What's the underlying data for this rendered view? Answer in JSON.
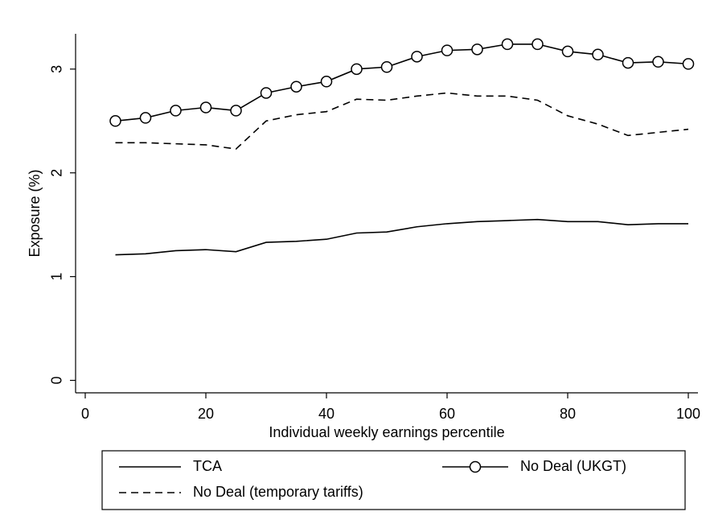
{
  "chart_data": {
    "type": "line",
    "x_label": "Individual weekly earnings percentile",
    "y_label": "Exposure (%)",
    "x": [
      5,
      10,
      15,
      20,
      25,
      30,
      35,
      40,
      45,
      50,
      55,
      60,
      65,
      70,
      75,
      80,
      85,
      90,
      95,
      100
    ],
    "series": [
      {
        "name": "TCA",
        "color": "#000000",
        "dash": "solid",
        "marker": "none",
        "values": [
          1.21,
          1.22,
          1.25,
          1.26,
          1.24,
          1.33,
          1.34,
          1.36,
          1.42,
          1.43,
          1.48,
          1.51,
          1.53,
          1.54,
          1.55,
          1.53,
          1.53,
          1.5,
          1.51,
          1.51
        ]
      },
      {
        "name": "No Deal (UKGT)",
        "color": "#000000",
        "dash": "solid",
        "marker": "circle",
        "values": [
          2.5,
          2.53,
          2.6,
          2.63,
          2.6,
          2.77,
          2.83,
          2.88,
          3.0,
          3.02,
          3.12,
          3.18,
          3.19,
          3.24,
          3.24,
          3.17,
          3.14,
          3.06,
          3.07,
          3.05
        ]
      },
      {
        "name": "No Deal (temporary tariffs)",
        "color": "#000000",
        "dash": "dashed",
        "marker": "none",
        "values": [
          2.29,
          2.29,
          2.28,
          2.27,
          2.23,
          2.5,
          2.56,
          2.59,
          2.71,
          2.7,
          2.74,
          2.77,
          2.74,
          2.74,
          2.7,
          2.55,
          2.47,
          2.36,
          2.39,
          2.42
        ]
      }
    ],
    "xlim": [
      -1.6,
      101.6
    ],
    "xticks": [
      0,
      20,
      40,
      60,
      80,
      100
    ],
    "ylim": [
      -0.12,
      3.34
    ],
    "yticks": [
      0,
      1,
      2,
      3
    ],
    "grid": false,
    "legend": "bottom"
  }
}
